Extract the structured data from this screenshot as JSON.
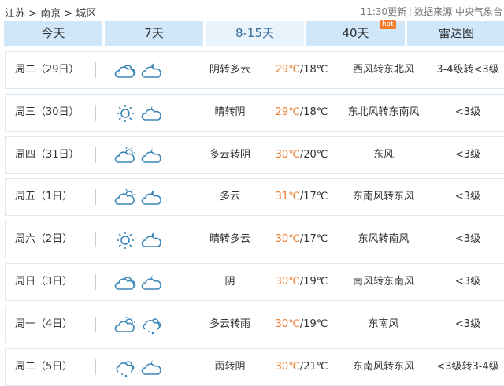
{
  "breadcrumb": [
    "江苏",
    "南京",
    "城区"
  ],
  "breadcrumb_sep": " > ",
  "update_time": "11:30更新",
  "source": "数据来源 中央气象台",
  "tabs": [
    {
      "label": "今天"
    },
    {
      "label": "7天"
    },
    {
      "label": "8-15天",
      "active": true
    },
    {
      "label": "40天",
      "badge": "hot"
    },
    {
      "label": "雷达图"
    }
  ],
  "colors": {
    "high_temp": "#f07a2a",
    "tab_bg": "#cfe7f8",
    "icon": "#3b86b8"
  },
  "days": [
    {
      "date": "周二（29日）",
      "day_icon": "cloudy",
      "night_icon": "cloudy-night",
      "weather": "阴转多云",
      "high": "29℃",
      "low": "/18℃",
      "wind": "西风转东北风",
      "level": "3-4级转<3级"
    },
    {
      "date": "周三（30日）",
      "day_icon": "sunny",
      "night_icon": "cloudy-night-filled",
      "weather": "晴转阴",
      "high": "29℃",
      "low": "/18℃",
      "wind": "东北风转东南风",
      "level": "<3级"
    },
    {
      "date": "周四（31日）",
      "day_icon": "partly-cloudy",
      "night_icon": "cloudy-night-filled",
      "weather": "多云转阴",
      "high": "30℃",
      "low": "/20℃",
      "wind": "东风",
      "level": "<3级"
    },
    {
      "date": "周五（1日）",
      "day_icon": "partly-cloudy",
      "night_icon": "cloudy-night",
      "weather": "多云",
      "high": "31℃",
      "low": "/17℃",
      "wind": "东南风转东风",
      "level": "<3级"
    },
    {
      "date": "周六（2日）",
      "day_icon": "sunny",
      "night_icon": "cloudy-night",
      "weather": "晴转多云",
      "high": "30℃",
      "low": "/17℃",
      "wind": "东风转南风",
      "level": "<3级"
    },
    {
      "date": "周日（3日）",
      "day_icon": "cloudy",
      "night_icon": "cloudy-night-filled",
      "weather": "阴",
      "high": "30℃",
      "low": "/19℃",
      "wind": "南风转东南风",
      "level": "<3级"
    },
    {
      "date": "周一（4日）",
      "day_icon": "partly-cloudy",
      "night_icon": "rain",
      "weather": "多云转雨",
      "high": "30℃",
      "low": "/19℃",
      "wind": "东南风",
      "level": "<3级"
    },
    {
      "date": "周二（5日）",
      "day_icon": "rain",
      "night_icon": "cloudy-night-filled",
      "weather": "雨转阴",
      "high": "30℃",
      "low": "/21℃",
      "wind": "东南风转东风",
      "level": "<3级转3-4级"
    }
  ]
}
